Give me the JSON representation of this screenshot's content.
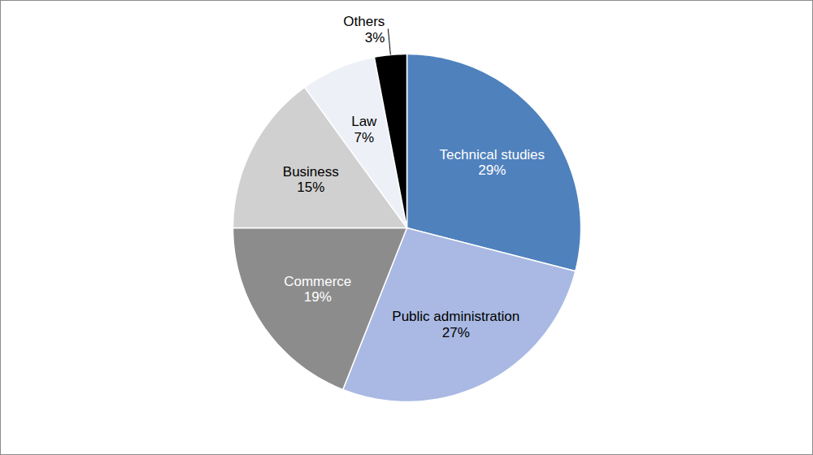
{
  "chart_data": {
    "type": "pie",
    "categories": [
      "Technical studies",
      "Public administration",
      "Commerce",
      "Business",
      "Law",
      "Others"
    ],
    "values": [
      29,
      27,
      19,
      15,
      7,
      3
    ],
    "value_labels": [
      "29%",
      "27%",
      "19%",
      "15%",
      "7%",
      "3%"
    ],
    "colors": [
      "#4f81bd",
      "#a9b9e3",
      "#8c8c8c",
      "#d0d0d0",
      "#eef0f8",
      "#000000"
    ],
    "data_labels": true
  }
}
